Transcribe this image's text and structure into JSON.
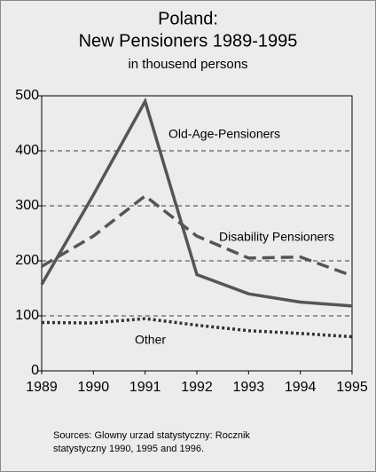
{
  "chart_data": {
    "type": "line",
    "title": "Poland:",
    "subtitle": "New Pensioners 1989-1995",
    "unit_label": "in thousend persons",
    "x": [
      1989,
      1990,
      1991,
      1992,
      1993,
      1994,
      1995
    ],
    "xlim": [
      1989,
      1995
    ],
    "xticks": [
      1989,
      1990,
      1991,
      1992,
      1993,
      1994,
      1995
    ],
    "ylim": [
      0,
      500
    ],
    "yticks": [
      0,
      100,
      200,
      300,
      400,
      500
    ],
    "grid": true,
    "series": [
      {
        "name": "Old-Age-Pensioners",
        "color": "#555555",
        "style": "solid",
        "values": [
          157,
          320,
          490,
          175,
          140,
          125,
          118
        ]
      },
      {
        "name": "Disability Pensioners",
        "color": "#555555",
        "style": "dashed",
        "values": [
          190,
          245,
          318,
          245,
          205,
          207,
          173
        ]
      },
      {
        "name": "Other",
        "color": "#333333",
        "style": "dotted",
        "values": [
          88,
          87,
          95,
          83,
          73,
          68,
          62
        ]
      }
    ],
    "source": [
      "Sources: Glowny urzad statystyczny: Rocznik",
      "statystyczny 1990, 1995 and 1996."
    ]
  }
}
